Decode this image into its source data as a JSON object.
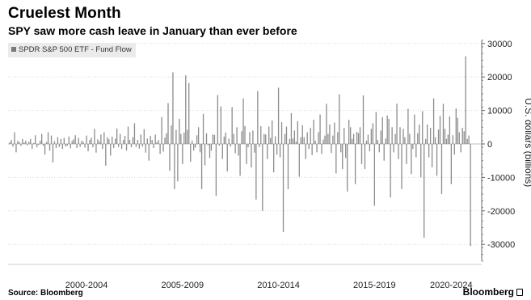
{
  "header": {
    "title": "Cruelest Month",
    "subtitle": "SPY saw more cash leave in January than ever before"
  },
  "footer": {
    "source": "Source: Bloomberg",
    "brand": "Bloomberg"
  },
  "colors": {
    "bar": "#8c8c8c",
    "grid": "#d9d9d9",
    "legend_bg": "#ebebeb"
  },
  "chart_data": {
    "type": "bar",
    "title": "Cruelest Month",
    "subtitle": "SPY saw more cash leave in January than ever before",
    "ylabel": "U.S. dollars (billions)",
    "y_axis_side": "right",
    "ylim": [
      -35000,
      31000
    ],
    "yticks": [
      30000,
      20000,
      10000,
      0,
      -10000,
      -20000,
      -30000
    ],
    "ytick_labels": [
      "30000",
      "20000",
      "10000",
      "0",
      "-10000",
      "-20000",
      "-30000"
    ],
    "xlim": [
      1998.0,
      2022.25
    ],
    "x_tick_labels": [
      {
        "label": "2000-2004",
        "center": 2002.0
      },
      {
        "label": "2005-2009",
        "center": 2007.0
      },
      {
        "label": "2010-2014",
        "center": 2012.0
      },
      {
        "label": "2015-2019",
        "center": 2017.0
      },
      {
        "label": "2020-2024",
        "center": 2021.0
      }
    ],
    "grid": true,
    "legend": {
      "position": "top-left",
      "entries": [
        "SPDR S&P 500 ETF - Fund Flow"
      ]
    },
    "series": [
      {
        "name": "SPDR S&P 500 ETF - Fund Flow",
        "x": [
          1998.0,
          1998.083,
          1998.167,
          1998.25,
          1998.333,
          1998.417,
          1998.5,
          1998.583,
          1998.667,
          1998.75,
          1998.833,
          1998.917,
          1999.0,
          1999.083,
          1999.167,
          1999.25,
          1999.333,
          1999.417,
          1999.5,
          1999.583,
          1999.667,
          1999.75,
          1999.833,
          1999.917,
          2000.0,
          2000.083,
          2000.167,
          2000.25,
          2000.333,
          2000.417,
          2000.5,
          2000.583,
          2000.667,
          2000.75,
          2000.833,
          2000.917,
          2001.0,
          2001.083,
          2001.167,
          2001.25,
          2001.333,
          2001.417,
          2001.5,
          2001.583,
          2001.667,
          2001.75,
          2001.833,
          2001.917,
          2002.0,
          2002.083,
          2002.167,
          2002.25,
          2002.333,
          2002.417,
          2002.5,
          2002.583,
          2002.667,
          2002.75,
          2002.833,
          2002.917,
          2003.0,
          2003.083,
          2003.167,
          2003.25,
          2003.333,
          2003.417,
          2003.5,
          2003.583,
          2003.667,
          2003.75,
          2003.833,
          2003.917,
          2004.0,
          2004.083,
          2004.167,
          2004.25,
          2004.333,
          2004.417,
          2004.5,
          2004.583,
          2004.667,
          2004.75,
          2004.833,
          2004.917,
          2005.0,
          2005.083,
          2005.167,
          2005.25,
          2005.333,
          2005.417,
          2005.5,
          2005.583,
          2005.667,
          2005.75,
          2005.833,
          2005.917,
          2006.0,
          2006.083,
          2006.167,
          2006.25,
          2006.333,
          2006.417,
          2006.5,
          2006.583,
          2006.667,
          2006.75,
          2006.833,
          2006.917,
          2007.0,
          2007.083,
          2007.167,
          2007.25,
          2007.333,
          2007.417,
          2007.5,
          2007.583,
          2007.667,
          2007.75,
          2007.833,
          2007.917,
          2008.0,
          2008.083,
          2008.167,
          2008.25,
          2008.333,
          2008.417,
          2008.5,
          2008.583,
          2008.667,
          2008.75,
          2008.833,
          2008.917,
          2009.0,
          2009.083,
          2009.167,
          2009.25,
          2009.333,
          2009.417,
          2009.5,
          2009.583,
          2009.667,
          2009.75,
          2009.833,
          2009.917,
          2010.0,
          2010.083,
          2010.167,
          2010.25,
          2010.333,
          2010.417,
          2010.5,
          2010.583,
          2010.667,
          2010.75,
          2010.833,
          2010.917,
          2011.0,
          2011.083,
          2011.167,
          2011.25,
          2011.333,
          2011.417,
          2011.5,
          2011.583,
          2011.667,
          2011.75,
          2011.833,
          2011.917,
          2012.0,
          2012.083,
          2012.167,
          2012.25,
          2012.333,
          2012.417,
          2012.5,
          2012.583,
          2012.667,
          2012.75,
          2012.833,
          2012.917,
          2013.0,
          2013.083,
          2013.167,
          2013.25,
          2013.333,
          2013.417,
          2013.5,
          2013.583,
          2013.667,
          2013.75,
          2013.833,
          2013.917,
          2014.0,
          2014.083,
          2014.167,
          2014.25,
          2014.333,
          2014.417,
          2014.5,
          2014.583,
          2014.667,
          2014.75,
          2014.833,
          2014.917,
          2015.0,
          2015.083,
          2015.167,
          2015.25,
          2015.333,
          2015.417,
          2015.5,
          2015.583,
          2015.667,
          2015.75,
          2015.833,
          2015.917,
          2016.0,
          2016.083,
          2016.167,
          2016.25,
          2016.333,
          2016.417,
          2016.5,
          2016.583,
          2016.667,
          2016.75,
          2016.833,
          2016.917,
          2017.0,
          2017.083,
          2017.167,
          2017.25,
          2017.333,
          2017.417,
          2017.5,
          2017.583,
          2017.667,
          2017.75,
          2017.833,
          2017.917,
          2018.0,
          2018.083,
          2018.167,
          2018.25,
          2018.333,
          2018.417,
          2018.5,
          2018.583,
          2018.667,
          2018.75,
          2018.833,
          2018.917,
          2019.0,
          2019.083,
          2019.167,
          2019.25,
          2019.333,
          2019.417,
          2019.5,
          2019.583,
          2019.667,
          2019.75,
          2019.833,
          2019.917,
          2020.0,
          2020.083,
          2020.167,
          2020.25,
          2020.333,
          2020.417,
          2020.5,
          2020.583,
          2020.667,
          2020.75,
          2020.833,
          2020.917,
          2021.0,
          2021.083,
          2021.167,
          2021.25,
          2021.333,
          2021.417,
          2021.5,
          2021.583,
          2021.667,
          2021.75,
          2021.833,
          2021.917,
          2022.0
        ],
        "values": [
          500,
          1200,
          -800,
          3500,
          -2500,
          900,
          600,
          -600,
          1500,
          400,
          1000,
          -400,
          700,
          1500,
          -1500,
          300,
          2600,
          -1000,
          -300,
          1000,
          3000,
          -600,
          -3200,
          600,
          3500,
          -2000,
          2500,
          -5500,
          800,
          -1200,
          2000,
          -900,
          1500,
          -1500,
          1800,
          -800,
          -500,
          2200,
          -1300,
          900,
          1400,
          2600,
          -1200,
          1800,
          -900,
          1000,
          600,
          -1100,
          2500,
          -2200,
          1200,
          1900,
          -1000,
          4500,
          -2600,
          1400,
          700,
          2800,
          -1500,
          3500,
          -6500,
          2000,
          1400,
          -3500,
          2200,
          -1200,
          1600,
          4600,
          -900,
          3000,
          -1500,
          1200,
          2400,
          -2000,
          5200,
          1200,
          -1000,
          2000,
          6200,
          -900,
          1200,
          -1400,
          2800,
          -800,
          4400,
          -2600,
          1600,
          -5000,
          2400,
          1200,
          -1200,
          2800,
          500,
          1200,
          -3000,
          8000,
          -2300,
          1900,
          3200,
          12200,
          -8000,
          5500,
          21400,
          -13500,
          4200,
          -11200,
          7500,
          3000,
          -6000,
          3400,
          20500,
          4200,
          18200,
          -5300,
          1000,
          -2000,
          -1100,
          2600,
          5000,
          -2500,
          -13500,
          9000,
          -6400,
          3200,
          -400,
          -4200,
          -2000,
          2800,
          2700,
          -15500,
          14600,
          -500,
          11200,
          -4500,
          2200,
          3400,
          -8200,
          1600,
          -800,
          11000,
          3000,
          -2800,
          5000,
          -3500,
          -9500,
          3800,
          13600,
          5400,
          -6000,
          -1000,
          3500,
          -7000,
          4000,
          -2600,
          -16600,
          15800,
          -900,
          5300,
          -20000,
          3000,
          2800,
          -4500,
          5200,
          1800,
          7000,
          -8500,
          2300,
          -3200,
          16800,
          -4000,
          6500,
          -26300,
          3000,
          5200,
          -13500,
          1500,
          9200,
          1600,
          4000,
          700,
          6800,
          -9800,
          2000,
          5600,
          2000,
          -4500,
          3500,
          -1500,
          4800,
          -3300,
          7200,
          1000,
          -2500,
          3500,
          8800,
          -3000,
          1300,
          2500,
          12000,
          3000,
          5800,
          -2700,
          2500,
          6400,
          -8800,
          3500,
          14800,
          -2500,
          -7500,
          4800,
          -4200,
          -14200,
          7200,
          5000,
          1500,
          3000,
          -12000,
          3600,
          3200,
          5000,
          -6000,
          14500,
          -7500,
          1000,
          2800,
          -2200,
          4500,
          6200,
          -18500,
          9500,
          1200,
          -2500,
          4000,
          8000,
          -5000,
          1600,
          8500,
          7500,
          -16000,
          5000,
          -2500,
          3000,
          12000,
          -4500,
          5000,
          -13500,
          4500,
          2000,
          -6000,
          10500,
          3000,
          -9000,
          -1500,
          8800,
          -4000,
          3200,
          5800,
          -10000,
          9800,
          -28000,
          1500,
          5800,
          -4000,
          4800,
          -7000,
          13600,
          2000,
          -9500,
          4300,
          8400,
          -15000,
          12000,
          4500,
          1500,
          2800,
          8200,
          -12000,
          2600,
          -3200,
          10600,
          7800,
          3500,
          -2500,
          4800,
          3800,
          26200,
          1500,
          2500,
          -30500
        ]
      }
    ]
  }
}
